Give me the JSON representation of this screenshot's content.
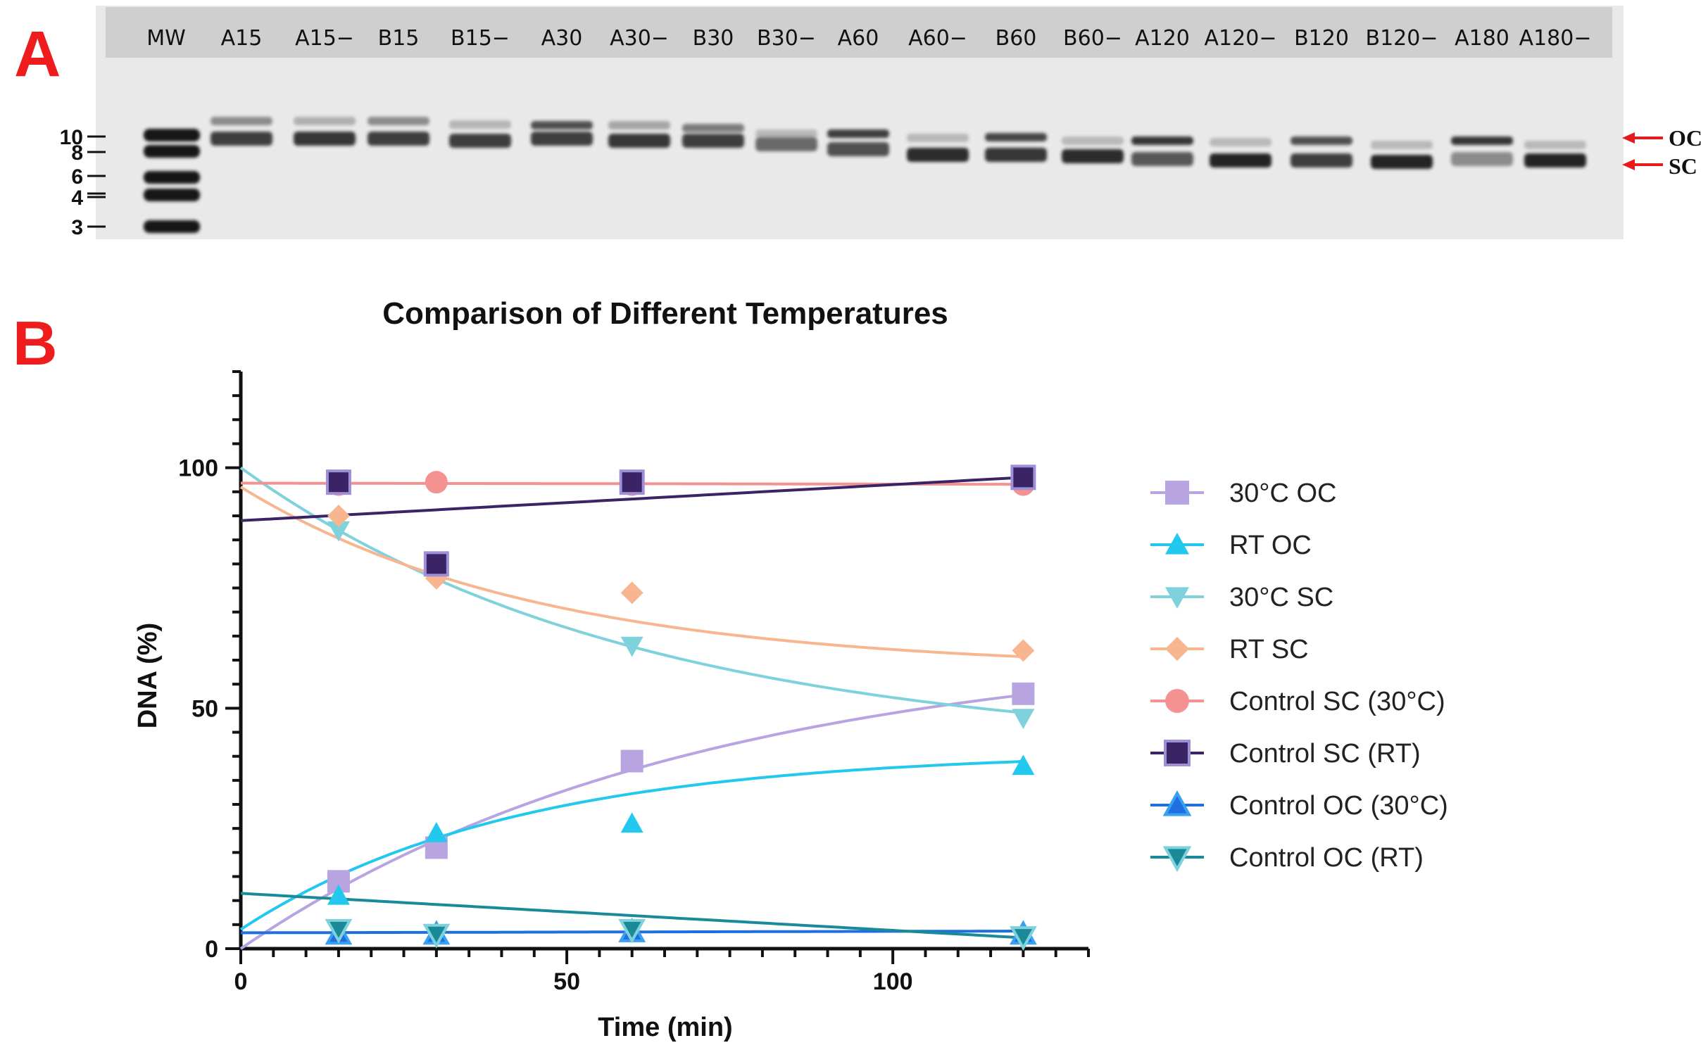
{
  "panel_a": {
    "letter": "A",
    "lanes": [
      "MW",
      "A15",
      "A15−",
      "B15",
      "B15−",
      "A30",
      "A30−",
      "B30",
      "B30−",
      "A60",
      "A60−",
      "B60",
      "B60−",
      "A120",
      "A120−",
      "B120",
      "B120−",
      "A180",
      "A180−"
    ],
    "mw_markers": [
      "10",
      "8",
      "6",
      "4",
      "3"
    ],
    "band_labels": {
      "oc": "OC",
      "sc": "SC"
    },
    "arrow_color": "#e8191d"
  },
  "panel_b": {
    "letter": "B"
  },
  "chart_data": {
    "type": "scatter",
    "title": "Comparison of Different Temperatures",
    "xlabel": "Time (min)",
    "ylabel": "DNA (%)",
    "xlim": [
      0,
      130
    ],
    "ylim": [
      0,
      120
    ],
    "xticks": [
      0,
      50,
      100
    ],
    "yticks": [
      0,
      50,
      100
    ],
    "legend_position": "right",
    "series": [
      {
        "name": "30°C OC",
        "marker": "square",
        "color": "#b7a4e0",
        "line_color": "#b7a4e0",
        "x": [
          15,
          30,
          60,
          120
        ],
        "values": [
          14,
          21,
          39,
          53
        ],
        "fit": {
          "kind": "exp_rise",
          "a": 64,
          "k": 0.0145,
          "c": 0
        }
      },
      {
        "name": "RT OC",
        "marker": "triangle-up",
        "color": "#22c8ee",
        "line_color": "#22c8ee",
        "x": [
          15,
          30,
          60,
          120
        ],
        "values": [
          11,
          24,
          26,
          38
        ],
        "fit": {
          "kind": "exp_rise",
          "a": 37,
          "k": 0.024,
          "c": 4
        }
      },
      {
        "name": "30°C SC",
        "marker": "triangle-down",
        "color": "#7fd2dc",
        "line_color": "#7fd2dc",
        "x": [
          15,
          30,
          60,
          120
        ],
        "values": [
          87,
          80,
          63,
          48
        ],
        "fit": {
          "kind": "exp_decay",
          "a": 59,
          "k": 0.0166,
          "c": 41
        }
      },
      {
        "name": "RT SC",
        "marker": "diamond",
        "color": "#f7b68f",
        "line_color": "#f7b68f",
        "x": [
          15,
          30,
          60,
          120
        ],
        "values": [
          90,
          77,
          74,
          62
        ],
        "fit": {
          "kind": "exp_decay",
          "a": 38,
          "k": 0.022,
          "c": 58
        }
      },
      {
        "name": "Control SC (30°C)",
        "marker": "circle",
        "color": "#f49191",
        "line_color": "#f49191",
        "x": [
          15,
          30,
          60,
          120
        ],
        "values": [
          96.5,
          97,
          96.5,
          96.5
        ],
        "fit": {
          "kind": "linear",
          "a": 96.8,
          "b": -0.002
        }
      },
      {
        "name": "Control SC (RT)",
        "marker": "square-dark",
        "color": "#3a2466",
        "line_color": "#3a2466",
        "x": [
          15,
          30,
          60,
          120
        ],
        "values": [
          97,
          80,
          97,
          98
        ],
        "fit": {
          "kind": "linear",
          "a": 89,
          "b": 0.075
        }
      },
      {
        "name": "Control OC (30°C)",
        "marker": "triangle-up-dark",
        "color": "#1f6fe0",
        "line_color": "#1f6fe0",
        "x": [
          15,
          30,
          60,
          120
        ],
        "values": [
          3,
          3,
          3.5,
          3
        ],
        "fit": {
          "kind": "linear",
          "a": 3.3,
          "b": 0.003
        }
      },
      {
        "name": "Control OC (RT)",
        "marker": "triangle-down-dark",
        "color": "#1a8a99",
        "line_color": "#1a8a99",
        "x": [
          15,
          30,
          60,
          120
        ],
        "values": [
          4,
          3,
          4,
          2.5
        ],
        "fit": {
          "kind": "linear",
          "a": 11.5,
          "b": -0.077
        }
      }
    ]
  }
}
